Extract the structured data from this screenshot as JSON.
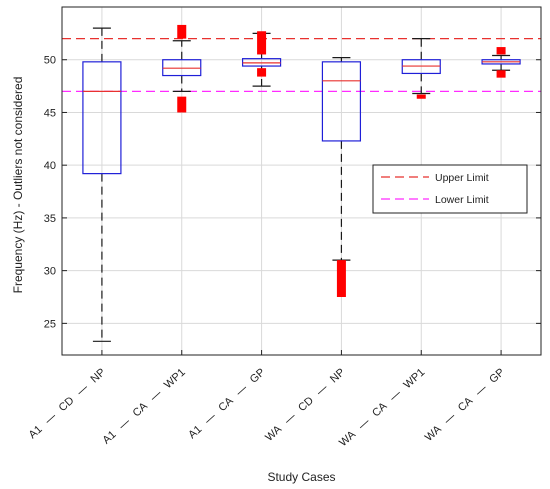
{
  "chart_data": {
    "type": "boxplot",
    "xlabel": "Study Cases",
    "ylabel": "Frequency (Hz) - Outliers not considered",
    "ylim": [
      22,
      55
    ],
    "yticks": [
      25,
      30,
      35,
      40,
      45,
      50
    ],
    "grid": true,
    "legend_position": "right-middle",
    "categories": [
      [
        "A1",
        "CD",
        "NP"
      ],
      [
        "A1",
        "CA",
        "WP1"
      ],
      [
        "A1",
        "CA",
        "GP"
      ],
      [
        "WA",
        "CD",
        "NP"
      ],
      [
        "WA",
        "CA",
        "WP1"
      ],
      [
        "WA",
        "CA",
        "GP"
      ]
    ],
    "category_separator": "—",
    "boxes": [
      {
        "q1": 39.2,
        "median": 47.0,
        "q3": 49.8,
        "whisker_low": 23.3,
        "whisker_high": 53.0,
        "outliers": []
      },
      {
        "q1": 48.5,
        "median": 49.2,
        "q3": 50.0,
        "whisker_low": 47.0,
        "whisker_high": 51.8,
        "outliers": [
          {
            "from": 45.0,
            "to": 46.5
          },
          {
            "from": 52.0,
            "to": 53.3
          }
        ]
      },
      {
        "q1": 49.4,
        "median": 49.7,
        "q3": 50.1,
        "whisker_low": 47.5,
        "whisker_high": 52.5,
        "outliers": [
          {
            "from": 48.4,
            "to": 49.2
          },
          {
            "from": 50.5,
            "to": 52.7
          }
        ]
      },
      {
        "q1": 42.3,
        "median": 48.0,
        "q3": 49.8,
        "whisker_low": 31.0,
        "whisker_high": 50.2,
        "outliers": [
          {
            "from": 27.5,
            "to": 31.0
          }
        ]
      },
      {
        "q1": 48.7,
        "median": 49.4,
        "q3": 50.0,
        "whisker_low": 46.8,
        "whisker_high": 52.0,
        "outliers": [
          {
            "from": 46.3,
            "to": 46.7
          }
        ]
      },
      {
        "q1": 49.6,
        "median": 49.8,
        "q3": 50.0,
        "whisker_low": 49.0,
        "whisker_high": 50.4,
        "outliers": [
          {
            "from": 48.3,
            "to": 49.0
          },
          {
            "from": 50.5,
            "to": 51.2
          }
        ]
      }
    ],
    "reference_lines": [
      {
        "name": "Upper Limit",
        "value": 52,
        "color": "#e8312f"
      },
      {
        "name": "Lower Limit",
        "value": 47,
        "color": "#ff2bff"
      }
    ],
    "colors": {
      "box": "#1f1fd8",
      "median": "#e8312f",
      "whisker": "#1a1a1a",
      "outlier": "#ff0000",
      "grid": "#d9d9d9"
    }
  }
}
